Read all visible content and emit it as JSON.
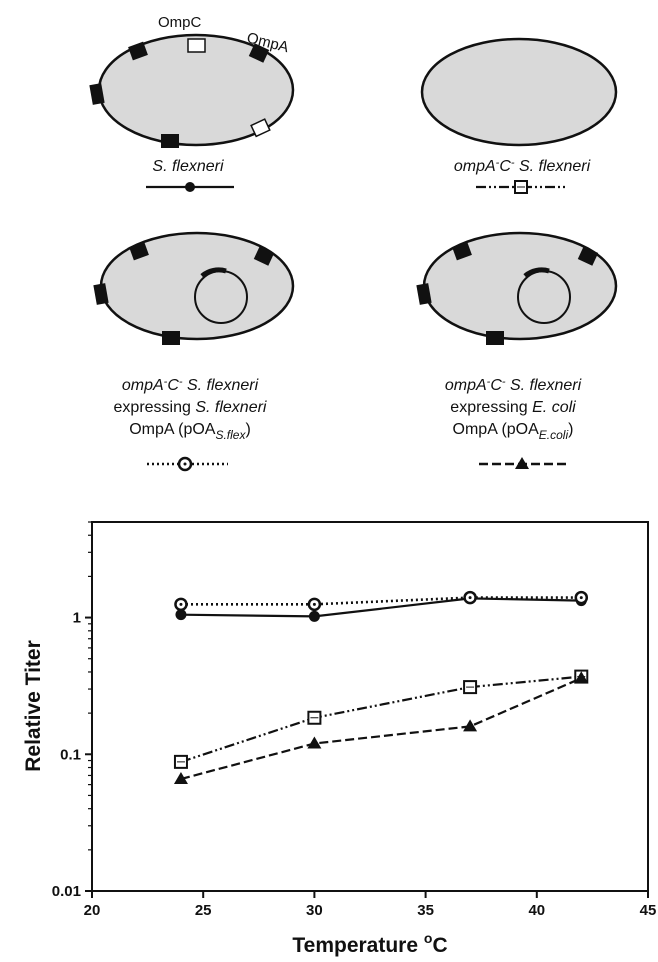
{
  "cells": {
    "c1": {
      "proteins": {
        "ompc": "OmpC",
        "ompa": "OmpA"
      },
      "label": "S. flexneri"
    },
    "c2": {
      "lab_gene": "ompA",
      "lab_minus1": "-",
      "lab_c": "C",
      "lab_minus2": "-",
      "lab_strain": " S. flexneri"
    },
    "c3": {
      "l1_gene": "ompA",
      "l1_minus1": "-",
      "l1_c": "C",
      "l1_minus2": "-",
      "l1_strain": " S. flexneri",
      "l2_expr": "expressing ",
      "l2_strain": "S. flexneri",
      "l3_pre": "OmpA (pOA",
      "l3_sub": "S.flex",
      "l3_post": ")"
    },
    "c4": {
      "l1_gene": "ompA",
      "l1_minus1": "-",
      "l1_c": "C",
      "l1_minus2": "-",
      "l1_strain": " S. flexneri",
      "l2_expr": "expressing ",
      "l2_strain": "E. coli",
      "l3_pre": "OmpA (pOA",
      "l3_sub": "E.coli",
      "l3_post": ")"
    }
  },
  "chart_data": {
    "type": "line",
    "x_axis_label": "Temperature °C",
    "x_axis_label_main": "Temperature ",
    "x_axis_label_unit": "o",
    "x_axis_label_c": "C",
    "y_axis_label": "Relative Titer",
    "xlim": [
      20,
      45
    ],
    "ylim": [
      0.01,
      5
    ],
    "y_scale": "log",
    "x_ticks": [
      20,
      25,
      30,
      35,
      40,
      45
    ],
    "y_ticks": [
      0.01,
      0.1,
      1
    ],
    "x_tick_labels": [
      "20",
      "25",
      "30",
      "35",
      "40",
      "45"
    ],
    "y_tick_labels": [
      "0.01",
      "0.1",
      "1"
    ],
    "series": [
      {
        "key": "wt",
        "marker": "filled-circle",
        "line": "solid",
        "x": [
          24,
          30,
          37,
          42
        ],
        "y": [
          1.05,
          1.02,
          1.38,
          1.33
        ]
      },
      {
        "key": "pOA_sflex",
        "marker": "open-circle",
        "line": "dotted",
        "x": [
          24,
          30,
          37,
          42
        ],
        "y": [
          1.25,
          1.25,
          1.4,
          1.4
        ]
      },
      {
        "key": "ompA_C",
        "marker": "open-square",
        "line": "dash-dot-dot",
        "x": [
          24,
          30,
          37,
          42
        ],
        "y": [
          0.088,
          0.185,
          0.31,
          0.37
        ]
      },
      {
        "key": "pOA_ecoli",
        "marker": "filled-triangle",
        "line": "dashed",
        "x": [
          24,
          30,
          37,
          42
        ],
        "y": [
          0.066,
          0.12,
          0.16,
          0.36
        ]
      }
    ]
  }
}
